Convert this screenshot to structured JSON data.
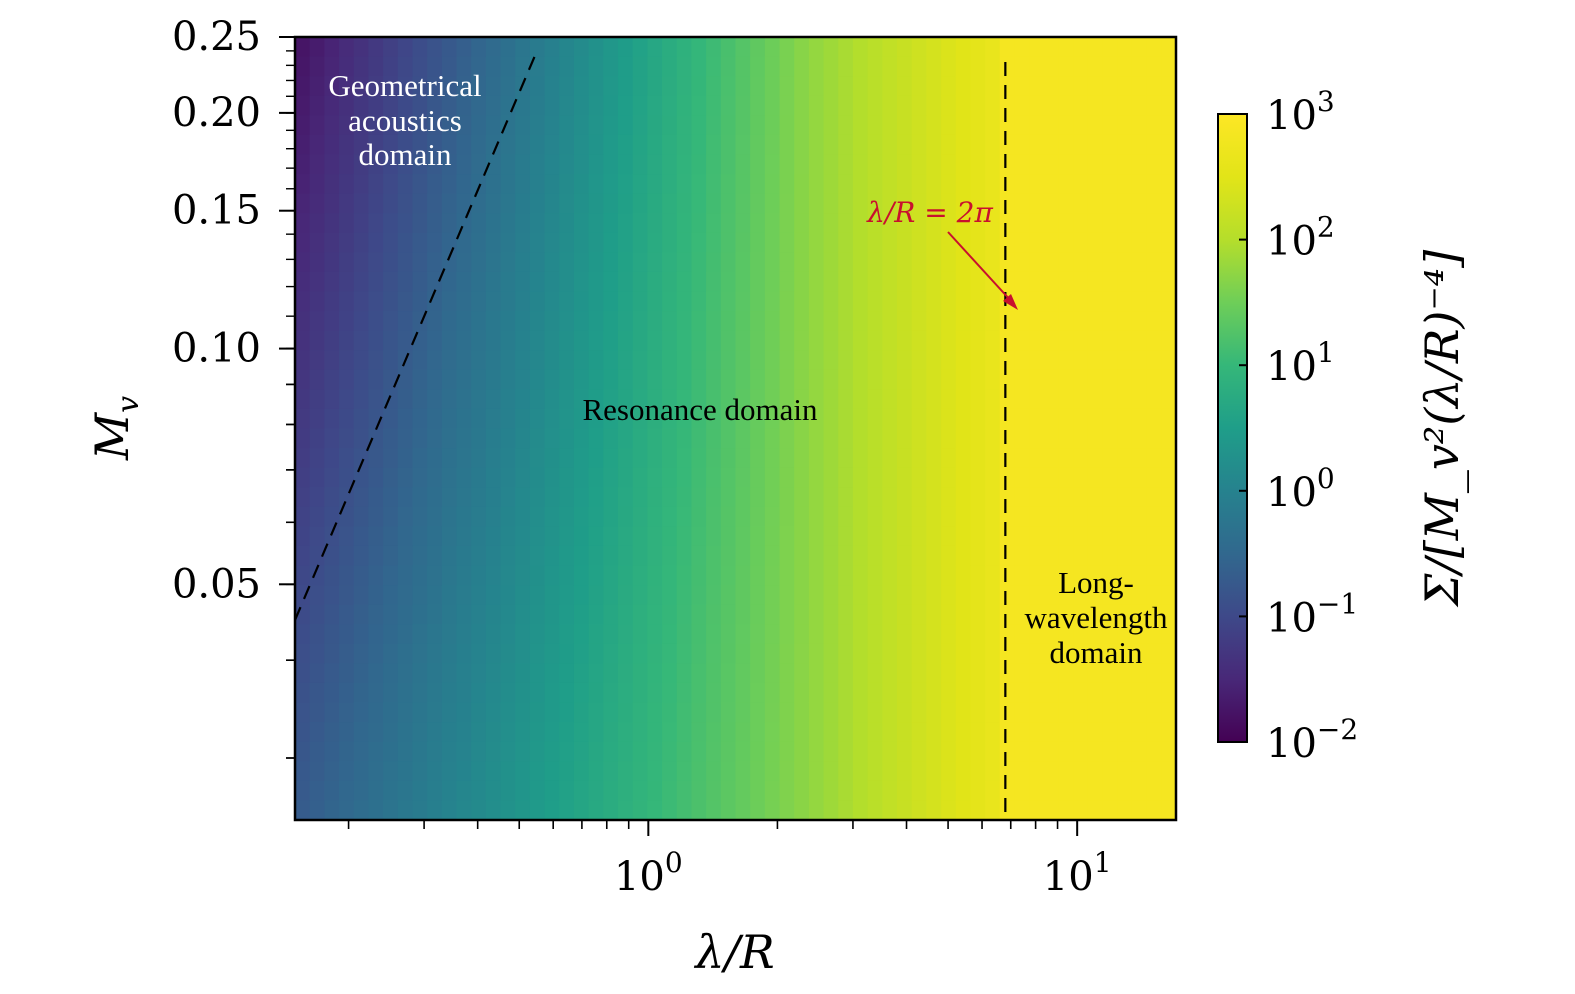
{
  "chart_data": {
    "type": "heatmap",
    "title": "",
    "xlabel": "λ/R",
    "ylabel": "M_v",
    "x_scale": "log",
    "y_scale": "log",
    "xlim": [
      0.15,
      17
    ],
    "ylim": [
      0.025,
      0.25
    ],
    "x_major_ticks": [
      1,
      10
    ],
    "x_tick_labels": [
      {
        "base": "10",
        "exp": "0"
      },
      {
        "base": "10",
        "exp": "1"
      }
    ],
    "y_ticks": [
      0.05,
      0.1,
      0.15,
      0.2,
      0.25
    ],
    "y_tick_labels": [
      "0.05",
      "0.10",
      "0.15",
      "0.20",
      "0.25"
    ],
    "colormap": "viridis",
    "colorbar": {
      "label": "Σ/[M_v²(λ/R)⁻⁴]",
      "scale": "log",
      "range": [
        0.01,
        1000
      ],
      "ticks": [
        {
          "base": "10",
          "exp": "3"
        },
        {
          "base": "10",
          "exp": "2"
        },
        {
          "base": "10",
          "exp": "1"
        },
        {
          "base": "10",
          "exp": "0"
        },
        {
          "base": "10",
          "exp": "−1"
        },
        {
          "base": "10",
          "exp": "−2"
        }
      ]
    },
    "boundaries": [
      {
        "name": "geometrical-acoustics-boundary",
        "style": "dashed",
        "points": [
          [
            0.15,
            0.045
          ],
          [
            0.55,
            0.24
          ]
        ]
      },
      {
        "name": "long-wavelength-boundary",
        "style": "dashed",
        "x": 6.8
      }
    ],
    "annotations": {
      "geometrical": [
        "Geometrical",
        "acoustics",
        "domain"
      ],
      "resonance": "Resonance domain",
      "long_wavelength": [
        "Long-",
        "wavelength",
        "domain"
      ],
      "arrow_label": "λ/R = 2π"
    },
    "colors": {
      "viridis_low": "#440154",
      "viridis_mid": "#21918c",
      "viridis_high": "#fde725",
      "annotation_red": "#c8102e"
    }
  }
}
